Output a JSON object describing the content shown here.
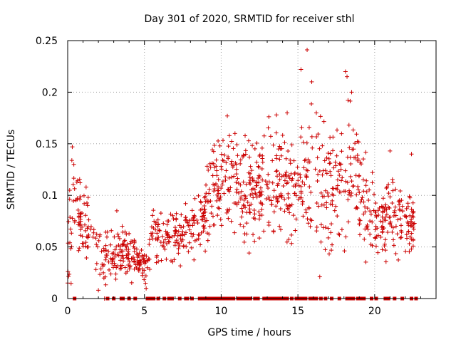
{
  "chart_data": {
    "type": "scatter",
    "title": "Day 301 of 2020, SRMTID for receiver sthl",
    "xlabel": "GPS time / hours",
    "ylabel": "SRMTID / TECUs",
    "xlim": [
      0,
      24
    ],
    "ylim": [
      0,
      0.25
    ],
    "x_ticks": [
      0,
      5,
      10,
      15,
      20
    ],
    "x_tick_labels": [
      "0",
      "5",
      "10",
      "15",
      "20"
    ],
    "y_ticks": [
      0,
      0.05,
      0.1,
      0.15,
      0.2,
      0.25
    ],
    "y_tick_labels": [
      "0",
      "0.05",
      "0.1",
      "0.15",
      "0.2",
      "0.25"
    ],
    "grid": true,
    "marker": "plus",
    "series": [
      {
        "name": "SRMTID",
        "color": "#cc0000",
        "profile": [
          {
            "x": 0.0,
            "y": 0.05,
            "spread": 0.04
          },
          {
            "x": 0.3,
            "y": 0.08,
            "spread": 0.05
          },
          {
            "x": 0.5,
            "y": 0.12,
            "spread": 0.03
          },
          {
            "x": 1.0,
            "y": 0.06,
            "spread": 0.025
          },
          {
            "x": 1.3,
            "y": 0.08,
            "spread": 0.025
          },
          {
            "x": 1.8,
            "y": 0.05,
            "spread": 0.025
          },
          {
            "x": 2.5,
            "y": 0.04,
            "spread": 0.02
          },
          {
            "x": 3.5,
            "y": 0.045,
            "spread": 0.02
          },
          {
            "x": 4.5,
            "y": 0.04,
            "spread": 0.015
          },
          {
            "x": 5.0,
            "y": 0.03,
            "spread": 0.015
          },
          {
            "x": 5.5,
            "y": 0.06,
            "spread": 0.02
          },
          {
            "x": 6.5,
            "y": 0.065,
            "spread": 0.02
          },
          {
            "x": 7.5,
            "y": 0.06,
            "spread": 0.02
          },
          {
            "x": 8.5,
            "y": 0.07,
            "spread": 0.025
          },
          {
            "x": 9.3,
            "y": 0.1,
            "spread": 0.03
          },
          {
            "x": 10.0,
            "y": 0.12,
            "spread": 0.035
          },
          {
            "x": 11.0,
            "y": 0.11,
            "spread": 0.035
          },
          {
            "x": 12.0,
            "y": 0.1,
            "spread": 0.035
          },
          {
            "x": 13.0,
            "y": 0.11,
            "spread": 0.04
          },
          {
            "x": 14.0,
            "y": 0.11,
            "spread": 0.04
          },
          {
            "x": 15.0,
            "y": 0.1,
            "spread": 0.04
          },
          {
            "x": 15.7,
            "y": 0.13,
            "spread": 0.05
          },
          {
            "x": 16.5,
            "y": 0.11,
            "spread": 0.05
          },
          {
            "x": 17.5,
            "y": 0.1,
            "spread": 0.04
          },
          {
            "x": 18.2,
            "y": 0.13,
            "spread": 0.05
          },
          {
            "x": 19.0,
            "y": 0.11,
            "spread": 0.04
          },
          {
            "x": 20.0,
            "y": 0.07,
            "spread": 0.025
          },
          {
            "x": 21.0,
            "y": 0.08,
            "spread": 0.025
          },
          {
            "x": 22.0,
            "y": 0.075,
            "spread": 0.025
          },
          {
            "x": 22.6,
            "y": 0.08,
            "spread": 0.02
          }
        ],
        "peaks": [
          {
            "x": 0.3,
            "y": 0.147
          },
          {
            "x": 0.4,
            "y": 0.13
          },
          {
            "x": 1.2,
            "y": 0.108
          },
          {
            "x": 3.2,
            "y": 0.085
          },
          {
            "x": 10.4,
            "y": 0.177
          },
          {
            "x": 10.9,
            "y": 0.16
          },
          {
            "x": 13.6,
            "y": 0.178
          },
          {
            "x": 14.3,
            "y": 0.18
          },
          {
            "x": 15.2,
            "y": 0.222
          },
          {
            "x": 15.6,
            "y": 0.241
          },
          {
            "x": 15.9,
            "y": 0.21
          },
          {
            "x": 16.2,
            "y": 0.18
          },
          {
            "x": 18.1,
            "y": 0.22
          },
          {
            "x": 18.2,
            "y": 0.215
          },
          {
            "x": 18.5,
            "y": 0.2
          },
          {
            "x": 21.0,
            "y": 0.143
          },
          {
            "x": 22.4,
            "y": 0.14
          }
        ],
        "lows": [
          {
            "x": 0.0,
            "y": 0.015
          },
          {
            "x": 2.0,
            "y": 0.008
          },
          {
            "x": 2.4,
            "y": 0.0
          },
          {
            "x": 5.1,
            "y": 0.022
          }
        ],
        "zero_x": [
          0.45,
          2.6,
          3.0,
          3.5,
          3.6,
          4.0,
          4.4,
          5.2,
          5.4,
          5.6,
          5.9,
          6.3,
          6.6,
          6.8,
          7.3,
          7.7,
          7.8,
          8.1,
          8.6,
          8.8,
          9.0,
          9.2,
          9.4,
          9.5,
          9.6,
          9.8,
          10.0,
          10.2,
          10.4,
          10.6,
          10.8,
          11.1,
          11.3,
          11.5,
          11.7,
          11.9,
          12.2,
          12.4,
          12.8,
          13.0,
          13.2,
          13.4,
          13.5,
          13.7,
          13.9,
          14.1,
          14.3,
          14.6,
          14.9,
          15.1,
          15.3,
          15.5,
          15.8,
          16.0,
          16.2,
          16.5,
          16.8,
          17.2,
          17.7,
          18.2,
          18.4,
          18.6,
          18.9,
          19.1,
          19.3,
          19.8,
          20.1,
          20.7,
          20.9,
          21.3,
          21.8,
          22.4,
          22.7
        ]
      }
    ]
  }
}
